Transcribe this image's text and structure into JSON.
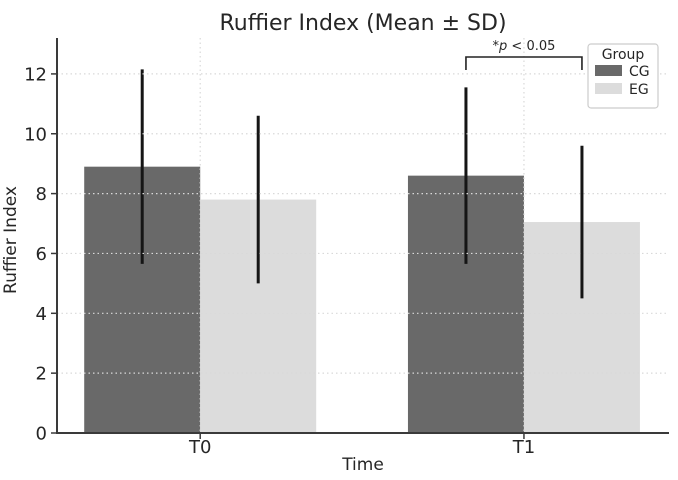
{
  "page": {
    "background": "#ffffff"
  },
  "chart_data": {
    "type": "bar",
    "title": "Ruffier Index (Mean ± SD)",
    "xlabel": "Time",
    "ylabel": "Ruffier Index",
    "categories": [
      "T0",
      "T1"
    ],
    "series": [
      {
        "name": "CG",
        "color": "#696969",
        "means": [
          8.9,
          8.6
        ],
        "sd": [
          3.25,
          2.95
        ]
      },
      {
        "name": "EG",
        "color": "#dcdcdc",
        "means": [
          7.8,
          7.05
        ],
        "sd": [
          2.8,
          2.55
        ]
      }
    ],
    "error_bars": "mean ± SD, capless vertical black lines",
    "ylim": [
      0,
      13.2
    ],
    "yticks": [
      0,
      2,
      4,
      6,
      8,
      10,
      12
    ],
    "grid": {
      "shown": true,
      "style": "dotted",
      "color": "#d9d9d9",
      "vertical_at_categories": true
    },
    "legend": {
      "title": "Group",
      "position": "upper right",
      "entries": [
        "CG",
        "EG"
      ]
    },
    "annotation": {
      "text": "*p < 0.05",
      "parts": [
        {
          "text": "*"
        },
        {
          "text": "p",
          "italic": true
        },
        {
          "text": " < 0.05"
        }
      ],
      "span": "between CG and EG error bars at T1"
    },
    "colors": {
      "error_bar": "#151515",
      "spine": "#3a3a3a",
      "text": "#262626",
      "bracket": "#222222",
      "legend_border": "#cccccc",
      "legend_bg": "#ffffff"
    }
  }
}
